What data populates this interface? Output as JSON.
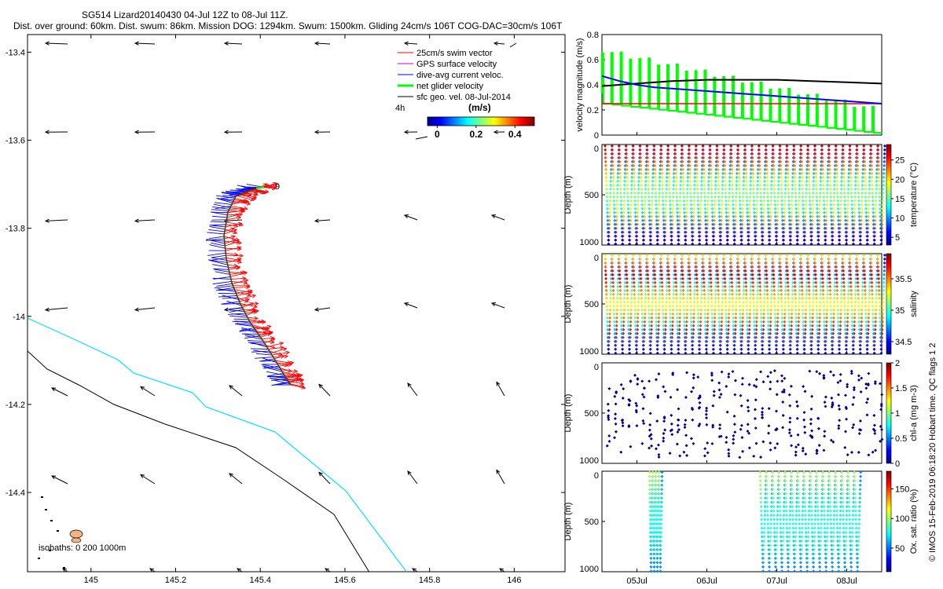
{
  "title": {
    "line1": "SG514 Lizard20140430 04-Jul 12Z to 08-Jul 11Z.",
    "line2": "Dist. over ground: 60km. Dist. swum: 86km. Mission DOG: 1294km. Swum: 1500km. Gliding 24cm/s 106T COG-DAC=30cm/s 106T"
  },
  "map": {
    "xticks": [
      "145",
      "145.2",
      "145.4",
      "145.6",
      "145.8",
      "146"
    ],
    "xtick_values": [
      145,
      145.2,
      145.4,
      145.6,
      145.8,
      146
    ],
    "yticks": [
      "-13.4",
      "-13.6",
      "-13.8",
      "-14",
      "-14.2",
      "-14.4"
    ],
    "ytick_values": [
      -13.4,
      -13.6,
      -13.8,
      -14,
      -14.2,
      -14.4
    ],
    "xlim": [
      144.85,
      146.12
    ],
    "ylim": [
      -14.58,
      -13.36
    ],
    "legend": [
      {
        "label": "25cm/s swim vector",
        "color": "#ff0000"
      },
      {
        "label": "GPS surface velocity",
        "color": "#cc00cc"
      },
      {
        "label": "dive-avg current veloc.",
        "color": "#0000ff"
      },
      {
        "label": "net glider velocity",
        "color": "#00ff00"
      },
      {
        "label": "sfc geo. vel. 08-Jul-2014",
        "color": "#000000"
      }
    ],
    "scale_label": "4h",
    "colorbar_label": "(m/s)",
    "colorbar_ticks": [
      "0",
      "0.2",
      "0.4"
    ],
    "colorbar_tick_values": [
      0,
      0.2,
      0.4
    ],
    "colorbar_range": [
      -0.05,
      0.5
    ],
    "track_end_label": "9",
    "isobaths_label": "isobaths: 0   200  1000m"
  },
  "side_xticks": [
    "05Jul",
    "06Jul",
    "07Jul",
    "08Jul"
  ],
  "side_xtick_values": [
    0.5,
    1.5,
    2.5,
    3.5
  ],
  "side_xlim": [
    0,
    4
  ],
  "velocity_panel": {
    "ylabel": "velocity magnitude (m/s)",
    "yticks": [
      "0",
      "0.2",
      "0.4",
      "0.6",
      "0.8"
    ],
    "ytick_values": [
      0,
      0.2,
      0.4,
      0.6,
      0.8
    ],
    "ylim": [
      0,
      0.8
    ],
    "red_level": 0.25,
    "series": [
      {
        "name": "sfc geo",
        "color": "#000000",
        "x": [
          0,
          0.5,
          1,
          1.5,
          2,
          2.5,
          3,
          3.5,
          4
        ],
        "y": [
          0.39,
          0.41,
          0.43,
          0.44,
          0.44,
          0.44,
          0.43,
          0.42,
          0.41
        ]
      },
      {
        "name": "dive-avg",
        "color": "#0000ff",
        "x": [
          0,
          0.25,
          0.5,
          0.75,
          1,
          1.25,
          1.5,
          1.75,
          2,
          2.25,
          2.5,
          2.75,
          3,
          3.25,
          3.5,
          3.75,
          4
        ],
        "y": [
          0.47,
          0.43,
          0.4,
          0.38,
          0.37,
          0.36,
          0.35,
          0.34,
          0.33,
          0.32,
          0.31,
          0.3,
          0.29,
          0.28,
          0.27,
          0.26,
          0.25
        ]
      }
    ]
  },
  "profile_panels": [
    {
      "id": "temperature",
      "ylabel": "Depth (m)",
      "clabel": "temperature (°C)",
      "yticks": [
        "0",
        "500",
        "1000"
      ],
      "ytick_values": [
        0,
        500,
        1000
      ],
      "cticks": [
        "5",
        "10",
        "15",
        "20",
        "25"
      ],
      "ctick_values": [
        5,
        10,
        15,
        20,
        25
      ],
      "crange": [
        3,
        29
      ],
      "type": "sawtooth"
    },
    {
      "id": "salinity",
      "ylabel": "Depth (m)",
      "clabel": "salinity",
      "yticks": [
        "0",
        "500",
        "1000"
      ],
      "ytick_values": [
        0,
        500,
        1000
      ],
      "cticks": [
        "34.5",
        "35",
        "35.5"
      ],
      "ctick_values": [
        34.5,
        35,
        35.5
      ],
      "crange": [
        34.3,
        35.9
      ],
      "type": "sawtooth"
    },
    {
      "id": "chla",
      "ylabel": "Depth (m)",
      "clabel": "chl-a (mg m-3)",
      "yticks": [
        "0",
        "500",
        "1000"
      ],
      "ytick_values": [
        0,
        500,
        1000
      ],
      "cticks": [
        "0",
        "0.5",
        "1",
        "1.5",
        "2"
      ],
      "ctick_values": [
        0,
        0.5,
        1,
        1.5,
        2
      ],
      "crange": [
        0,
        2
      ],
      "type": "scatter"
    },
    {
      "id": "oxygen",
      "ylabel": "Depth (m)",
      "clabel": "Ox. sat. ratio (%)",
      "yticks": [
        "0",
        "500",
        "1000"
      ],
      "ytick_values": [
        0,
        500,
        1000
      ],
      "cticks": [
        "50",
        "100",
        "150"
      ],
      "ctick_values": [
        50,
        100,
        150
      ],
      "crange": [
        10,
        180
      ],
      "type": "sparse"
    }
  ],
  "footer_text": "© IMOS 15-Feb-2019 06:18:20 Hobart time. QC flags 1 2"
}
